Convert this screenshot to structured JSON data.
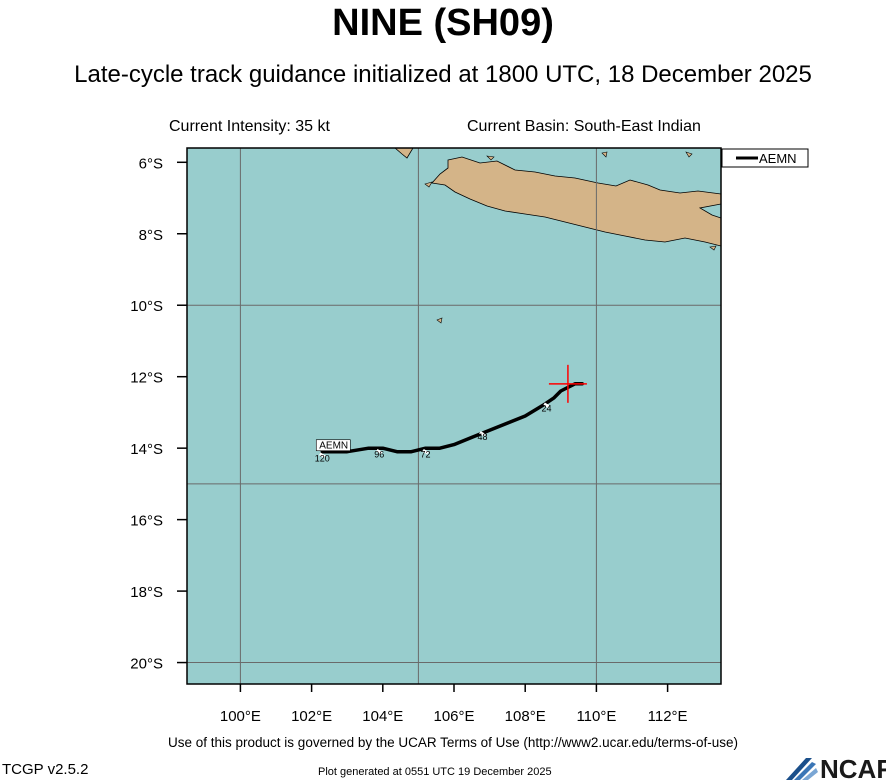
{
  "header": {
    "title": "NINE (SH09)",
    "subtitle": "Late-cycle track guidance initialized at 1800 UTC, 18 December 2025",
    "current_intensity": "Current Intensity: 35 kt",
    "current_basin": "Current Basin: South-East Indian"
  },
  "map": {
    "lon_range": [
      98.5,
      113.5
    ],
    "lat_range": [
      -20.6,
      -5.6
    ],
    "x_ticks": [
      {
        "lon": 100,
        "label": "100°E"
      },
      {
        "lon": 102,
        "label": "102°E"
      },
      {
        "lon": 104,
        "label": "104°E"
      },
      {
        "lon": 106,
        "label": "106°E"
      },
      {
        "lon": 108,
        "label": "108°E"
      },
      {
        "lon": 110,
        "label": "110°E"
      },
      {
        "lon": 112,
        "label": "112°E"
      }
    ],
    "y_ticks": [
      {
        "lat": -6,
        "label": "6°S"
      },
      {
        "lat": -8,
        "label": "8°S"
      },
      {
        "lat": -10,
        "label": "10°S"
      },
      {
        "lat": -12,
        "label": "12°S"
      },
      {
        "lat": -14,
        "label": "14°S"
      },
      {
        "lat": -16,
        "label": "16°S"
      },
      {
        "lat": -18,
        "label": "18°S"
      },
      {
        "lat": -20,
        "label": "20°S"
      }
    ],
    "grid_lons": [
      100,
      105,
      110
    ],
    "grid_lats": [
      -10,
      -15,
      -20
    ],
    "colors": {
      "ocean": "#98cdcd",
      "land": "#d4b488",
      "grid": "#6a6a6a",
      "track": "#000000",
      "marker": "#ff0000"
    },
    "current_position": {
      "lon": 109.2,
      "lat": -12.2
    },
    "legend": {
      "entries": [
        "AEMN"
      ],
      "placement": "top-right"
    }
  },
  "chart_data": {
    "type": "track",
    "title": "NINE (SH09)",
    "series": [
      {
        "name": "AEMN",
        "points": [
          {
            "lon": 109.6,
            "lat": -12.2
          },
          {
            "lon": 109.4,
            "lat": -12.2
          },
          {
            "lon": 109.0,
            "lat": -12.4
          },
          {
            "lon": 108.8,
            "lat": -12.6
          },
          {
            "lon": 108.5,
            "lat": -12.8
          },
          {
            "lon": 108.0,
            "lat": -13.1
          },
          {
            "lon": 107.5,
            "lat": -13.3
          },
          {
            "lon": 107.0,
            "lat": -13.5
          },
          {
            "lon": 106.5,
            "lat": -13.7
          },
          {
            "lon": 106.0,
            "lat": -13.9
          },
          {
            "lon": 105.6,
            "lat": -14.0
          },
          {
            "lon": 105.2,
            "lat": -14.0
          },
          {
            "lon": 104.8,
            "lat": -14.1
          },
          {
            "lon": 104.4,
            "lat": -14.1
          },
          {
            "lon": 104.0,
            "lat": -14.0
          },
          {
            "lon": 103.6,
            "lat": -14.0
          },
          {
            "lon": 103.0,
            "lat": -14.1
          },
          {
            "lon": 102.6,
            "lat": -14.1
          },
          {
            "lon": 102.3,
            "lat": -14.1
          }
        ],
        "hour_labels": [
          {
            "label": "24",
            "lon": 108.6,
            "lat": -12.8
          },
          {
            "label": "48",
            "lon": 106.8,
            "lat": -13.6
          },
          {
            "label": "72",
            "lon": 105.2,
            "lat": -14.1
          },
          {
            "label": "96",
            "lon": 103.9,
            "lat": -14.1
          },
          {
            "label": "120",
            "lon": 102.3,
            "lat": -14.2
          }
        ],
        "end_label": "AEMN"
      }
    ]
  },
  "footer": {
    "terms": "Use of this product is governed by the UCAR Terms of Use (http://www2.ucar.edu/terms-of-use)",
    "version": "TCGP v2.5.2",
    "generated": "Plot generated at 0551 UTC   19 December 2025",
    "logo_text": "NCAR"
  }
}
